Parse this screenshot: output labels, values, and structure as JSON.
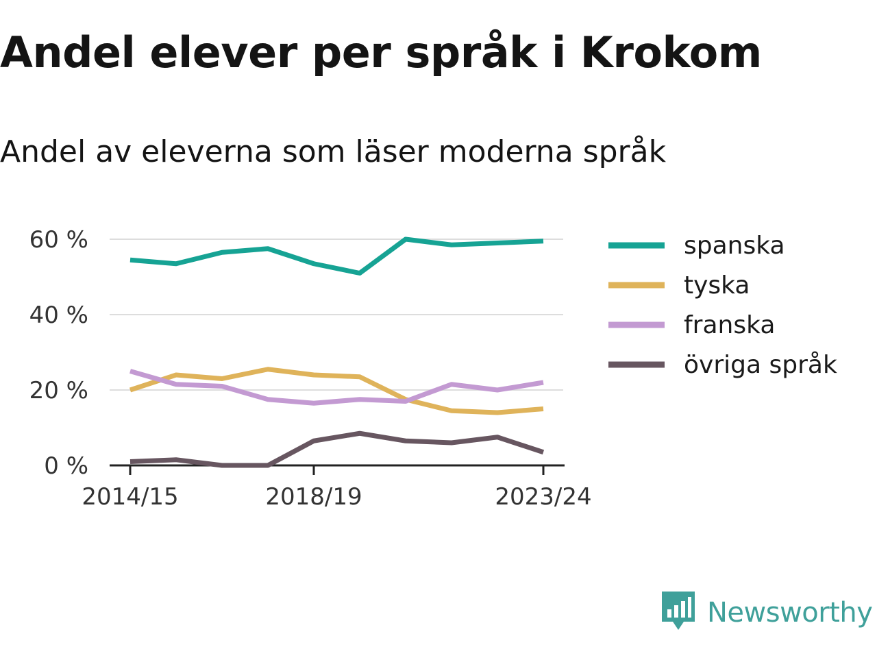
{
  "title": "Andel elever per språk i Krokom",
  "subtitle": "Andel av eleverna som läser moderna språk",
  "brand": {
    "name": "Newsworthy",
    "icon": "newsworthy-logo-icon",
    "color": "#3fa09a"
  },
  "chart_data": {
    "type": "line",
    "x": [
      "2014/15",
      "2015/16",
      "2016/17",
      "2017/18",
      "2018/19",
      "2019/20",
      "2020/21",
      "2021/22",
      "2022/23",
      "2023/24"
    ],
    "x_tick_labels": [
      "2014/15",
      "2018/19",
      "2023/24"
    ],
    "y_ticks": [
      {
        "value": 0,
        "label": "0 %"
      },
      {
        "value": 20,
        "label": "20 %"
      },
      {
        "value": 40,
        "label": "40 %"
      },
      {
        "value": 60,
        "label": "60 %"
      }
    ],
    "ylim": [
      0,
      60
    ],
    "grid": true,
    "legend_position": "right",
    "series": [
      {
        "name": "spanska",
        "color": "#16a394",
        "values": [
          54.5,
          53.5,
          56.5,
          57.5,
          53.5,
          51.0,
          60.0,
          58.5,
          59.0,
          59.5
        ]
      },
      {
        "name": "tyska",
        "color": "#dfb35a",
        "values": [
          20.0,
          24.0,
          23.0,
          25.5,
          24.0,
          23.5,
          17.5,
          14.5,
          14.0,
          15.0
        ]
      },
      {
        "name": "franska",
        "color": "#c39ad2",
        "values": [
          25.0,
          21.5,
          21.0,
          17.5,
          16.5,
          17.5,
          17.0,
          21.5,
          20.0,
          22.0
        ]
      },
      {
        "name": "övriga språk",
        "color": "#675660",
        "values": [
          1.0,
          1.5,
          0.0,
          0.0,
          6.5,
          8.5,
          6.5,
          6.0,
          7.5,
          3.5
        ]
      }
    ]
  }
}
